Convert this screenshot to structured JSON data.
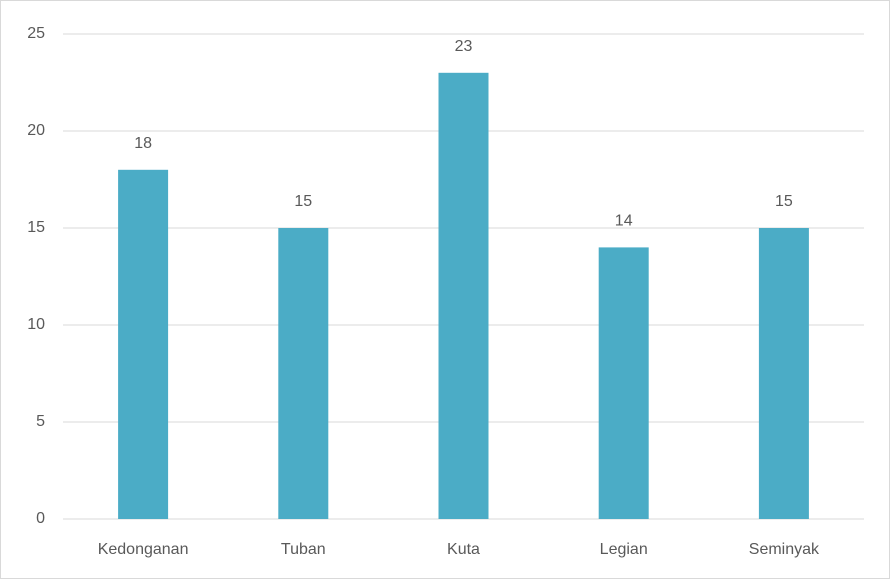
{
  "chart_data": {
    "type": "bar",
    "categories": [
      "Kedonganan",
      "Tuban",
      "Kuta",
      "Legian",
      "Seminyak"
    ],
    "values": [
      18,
      15,
      23,
      14,
      15
    ],
    "color": "#4bacc6",
    "ylim": [
      0,
      25
    ],
    "yticks": [
      0,
      5,
      10,
      15,
      20,
      25
    ],
    "grid": true
  }
}
